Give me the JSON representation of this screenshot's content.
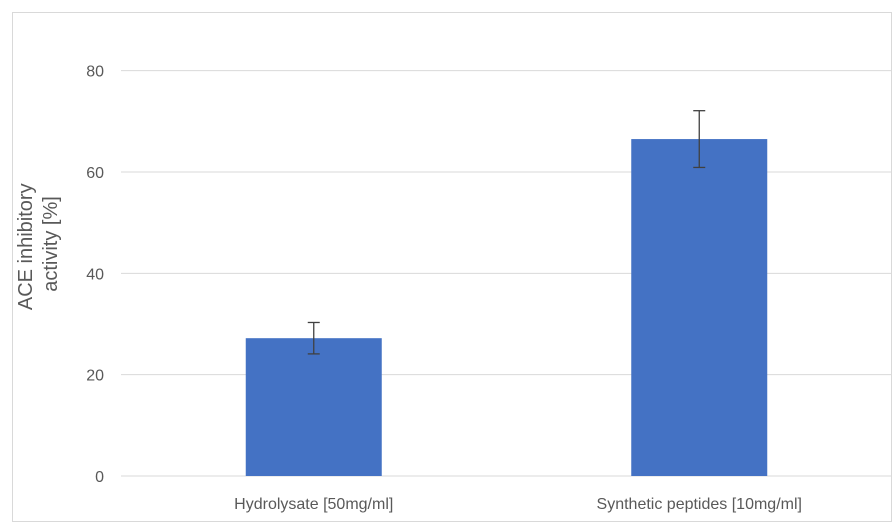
{
  "chart_data": {
    "type": "bar",
    "categories": [
      "Hydrolysate [50mg/ml]",
      "Synthetic peptides [10mg/ml]"
    ],
    "series": [
      {
        "values": [
          27.2,
          66.5
        ],
        "error": [
          3.1,
          5.6
        ],
        "color": "#4472c4"
      }
    ],
    "ylabel_lines": [
      "ACE inhibitory",
      "activity [%]"
    ],
    "ylim": [
      0,
      90
    ],
    "yticks": [
      0,
      20,
      40,
      60,
      80
    ],
    "grid": true,
    "gridline_color": "#d9d9d9",
    "text_color": "#595959",
    "errorbar_color": "#404040"
  }
}
